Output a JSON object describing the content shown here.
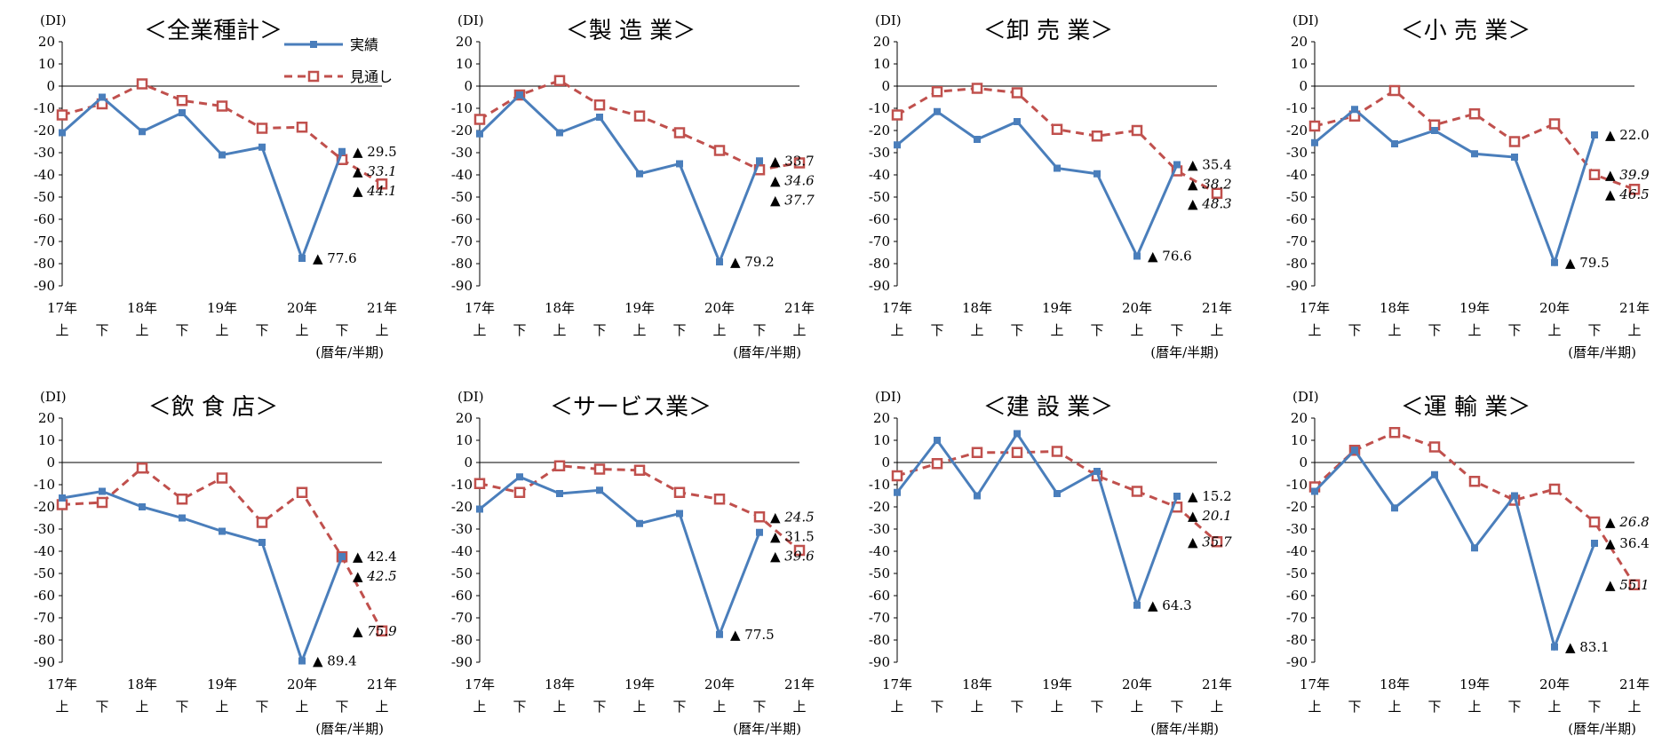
{
  "page": {
    "di_label": "(DI)",
    "period_label": "(暦年/半期)",
    "legend": {
      "actual": "実績",
      "forecast": "見通し"
    },
    "colors": {
      "actual": "#4a7ebb",
      "forecast": "#c0504d"
    }
  },
  "chart_data": [
    {
      "type": "line",
      "title": "＜全業種計＞",
      "x_year_labels": [
        "17年",
        "18年",
        "19年",
        "20年",
        "21年"
      ],
      "x_half_labels": [
        "上",
        "下",
        "上",
        "下",
        "上",
        "下",
        "上",
        "下",
        "上"
      ],
      "yticks": [
        20,
        10,
        0,
        -10,
        -20,
        -30,
        -40,
        -50,
        -60,
        -70,
        -80,
        -90
      ],
      "ylim": [
        -90,
        20
      ],
      "series": [
        {
          "name": "実績",
          "values": [
            -21,
            -5,
            -20.5,
            -12,
            -31,
            -27.5,
            -77.6,
            -29.5,
            null
          ]
        },
        {
          "name": "見通し",
          "values": [
            -13,
            -8,
            1,
            -6.5,
            -9,
            -19,
            -18.5,
            -33.1,
            -44.1
          ]
        }
      ],
      "annotations": [
        {
          "text": "▲ 29.5",
          "style": "normal",
          "value": -29.5
        },
        {
          "text": "▲ 33.1",
          "style": "italic",
          "value": -33.1
        },
        {
          "text": "▲ 44.1",
          "style": "italic",
          "value": -44.1
        },
        {
          "text": "▲ 77.6",
          "style": "normal",
          "value": -77.6
        }
      ],
      "legend": true
    },
    {
      "type": "line",
      "title": "＜製 造 業＞",
      "x_year_labels": [
        "17年",
        "18年",
        "19年",
        "20年",
        "21年"
      ],
      "x_half_labels": [
        "上",
        "下",
        "上",
        "下",
        "上",
        "下",
        "上",
        "下",
        "上"
      ],
      "yticks": [
        20,
        10,
        0,
        -10,
        -20,
        -30,
        -40,
        -50,
        -60,
        -70,
        -80,
        -90
      ],
      "ylim": [
        -90,
        20
      ],
      "series": [
        {
          "name": "実績",
          "values": [
            -21.5,
            -4,
            -21,
            -14,
            -39.5,
            -35,
            -79.2,
            -33.7,
            null
          ]
        },
        {
          "name": "見通し",
          "values": [
            -15,
            -4,
            2.5,
            -8.5,
            -13.5,
            -21,
            -29,
            -37.7,
            -34.6
          ]
        }
      ],
      "annotations": [
        {
          "text": "▲ 33.7",
          "style": "normal",
          "value": -33.7
        },
        {
          "text": "▲ 34.6",
          "style": "italic",
          "value": -34.6
        },
        {
          "text": "▲ 37.7",
          "style": "italic",
          "value": -37.7
        },
        {
          "text": "▲ 79.2",
          "style": "normal",
          "value": -79.2
        }
      ],
      "legend": false
    },
    {
      "type": "line",
      "title": "＜卸 売 業＞",
      "x_year_labels": [
        "17年",
        "18年",
        "19年",
        "20年",
        "21年"
      ],
      "x_half_labels": [
        "上",
        "下",
        "上",
        "下",
        "上",
        "下",
        "上",
        "下",
        "上"
      ],
      "yticks": [
        20,
        10,
        0,
        -10,
        -20,
        -30,
        -40,
        -50,
        -60,
        -70,
        -80,
        -90
      ],
      "ylim": [
        -90,
        20
      ],
      "series": [
        {
          "name": "実績",
          "values": [
            -26.5,
            -11.5,
            -24,
            -16,
            -37,
            -39.5,
            -76.6,
            -35.4,
            null
          ]
        },
        {
          "name": "見通し",
          "values": [
            -13,
            -2.5,
            -1,
            -3,
            -19.5,
            -22.5,
            -20,
            -38.2,
            -48.3
          ]
        }
      ],
      "annotations": [
        {
          "text": "▲ 35.4",
          "style": "normal",
          "value": -35.4
        },
        {
          "text": "▲ 38.2",
          "style": "italic",
          "value": -38.2
        },
        {
          "text": "▲ 48.3",
          "style": "italic",
          "value": -48.3
        },
        {
          "text": "▲ 76.6",
          "style": "normal",
          "value": -76.6
        }
      ],
      "legend": false
    },
    {
      "type": "line",
      "title": "＜小 売 業＞",
      "x_year_labels": [
        "17年",
        "18年",
        "19年",
        "20年",
        "21年"
      ],
      "x_half_labels": [
        "上",
        "下",
        "上",
        "下",
        "上",
        "下",
        "上",
        "下",
        "上"
      ],
      "yticks": [
        20,
        10,
        0,
        -10,
        -20,
        -30,
        -40,
        -50,
        -60,
        -70,
        -80,
        -90
      ],
      "ylim": [
        -90,
        20
      ],
      "series": [
        {
          "name": "実績",
          "values": [
            -25.5,
            -10.5,
            -26,
            -20,
            -30.5,
            -32,
            -79.5,
            -22,
            null
          ]
        },
        {
          "name": "見通し",
          "values": [
            -18,
            -13.5,
            -2,
            -17.5,
            -12.5,
            -25,
            -17,
            -39.9,
            -46.5
          ]
        }
      ],
      "annotations": [
        {
          "text": "▲ 22.0",
          "style": "normal",
          "value": -22.0
        },
        {
          "text": "▲ 39.9",
          "style": "italic",
          "value": -39.9
        },
        {
          "text": "▲ 46.5",
          "style": "italic",
          "value": -46.5
        },
        {
          "text": "▲ 79.5",
          "style": "normal",
          "value": -79.5
        }
      ],
      "legend": false
    },
    {
      "type": "line",
      "title": "＜飲 食 店＞",
      "x_year_labels": [
        "17年",
        "18年",
        "19年",
        "20年",
        "21年"
      ],
      "x_half_labels": [
        "上",
        "下",
        "上",
        "下",
        "上",
        "下",
        "上",
        "下",
        "上"
      ],
      "yticks": [
        20,
        10,
        0,
        -10,
        -20,
        -30,
        -40,
        -50,
        -60,
        -70,
        -80,
        -90
      ],
      "ylim": [
        -90,
        20
      ],
      "series": [
        {
          "name": "実績",
          "values": [
            -16,
            -13,
            -20,
            -25,
            -31,
            -36,
            -89.4,
            -42.4,
            null
          ]
        },
        {
          "name": "見通し",
          "values": [
            -19,
            -18,
            -2.5,
            -16.5,
            -7,
            -27,
            -13.5,
            -42.5,
            -75.9
          ]
        }
      ],
      "annotations": [
        {
          "text": "▲ 42.4",
          "style": "normal",
          "value": -42.4
        },
        {
          "text": "▲ 42.5",
          "style": "italic",
          "value": -42.5
        },
        {
          "text": "▲ 75.9",
          "style": "italic",
          "value": -75.9
        },
        {
          "text": "▲ 89.4",
          "style": "normal",
          "value": -89.4
        }
      ],
      "legend": false
    },
    {
      "type": "line",
      "title": "＜サービス業＞",
      "x_year_labels": [
        "17年",
        "18年",
        "19年",
        "20年",
        "21年"
      ],
      "x_half_labels": [
        "上",
        "下",
        "上",
        "下",
        "上",
        "下",
        "上",
        "下",
        "上"
      ],
      "yticks": [
        20,
        10,
        0,
        -10,
        -20,
        -30,
        -40,
        -50,
        -60,
        -70,
        -80,
        -90
      ],
      "ylim": [
        -90,
        20
      ],
      "series": [
        {
          "name": "実績",
          "values": [
            -21,
            -6.5,
            -14,
            -12.5,
            -27.5,
            -23,
            -77.5,
            -31.5,
            null
          ]
        },
        {
          "name": "見通し",
          "values": [
            -9.5,
            -13.5,
            -1.5,
            -3,
            -3.5,
            -13.5,
            -16.5,
            -24.5,
            -39.6
          ]
        }
      ],
      "annotations": [
        {
          "text": "▲ 24.5",
          "style": "italic",
          "value": -24.5
        },
        {
          "text": "▲ 31.5",
          "style": "normal",
          "value": -31.5
        },
        {
          "text": "▲ 39.6",
          "style": "italic",
          "value": -39.6
        },
        {
          "text": "▲ 77.5",
          "style": "normal",
          "value": -77.5
        }
      ],
      "legend": false
    },
    {
      "type": "line",
      "title": "＜建 設 業＞",
      "x_year_labels": [
        "17年",
        "18年",
        "19年",
        "20年",
        "21年"
      ],
      "x_half_labels": [
        "上",
        "下",
        "上",
        "下",
        "上",
        "下",
        "上",
        "下",
        "上"
      ],
      "yticks": [
        20,
        10,
        0,
        -10,
        -20,
        -30,
        -40,
        -50,
        -60,
        -70,
        -80,
        -90
      ],
      "ylim": [
        -90,
        20
      ],
      "series": [
        {
          "name": "実績",
          "values": [
            -13.5,
            10,
            -15,
            13,
            -14,
            -4,
            -64.3,
            -15.2,
            null
          ]
        },
        {
          "name": "見通し",
          "values": [
            -6,
            -0.5,
            4.5,
            4.5,
            5,
            -6,
            -13,
            -20.1,
            -35.7
          ]
        }
      ],
      "annotations": [
        {
          "text": "▲ 15.2",
          "style": "normal",
          "value": -15.2
        },
        {
          "text": "▲ 20.1",
          "style": "italic",
          "value": -20.1
        },
        {
          "text": "▲ 35.7",
          "style": "italic",
          "value": -35.7
        },
        {
          "text": "▲ 64.3",
          "style": "normal",
          "value": -64.3
        }
      ],
      "legend": false
    },
    {
      "type": "line",
      "title": "＜運 輸 業＞",
      "x_year_labels": [
        "17年",
        "18年",
        "19年",
        "20年",
        "21年"
      ],
      "x_half_labels": [
        "上",
        "下",
        "上",
        "下",
        "上",
        "下",
        "上",
        "下",
        "上"
      ],
      "yticks": [
        20,
        10,
        0,
        -10,
        -20,
        -30,
        -40,
        -50,
        -60,
        -70,
        -80,
        -90
      ],
      "ylim": [
        -90,
        20
      ],
      "series": [
        {
          "name": "実績",
          "values": [
            -13,
            5.5,
            -20.5,
            -5.5,
            -38.5,
            -15,
            -83.1,
            -36.4,
            null
          ]
        },
        {
          "name": "見通し",
          "values": [
            -11,
            5.5,
            13.5,
            7,
            -8.5,
            -17,
            -12,
            -26.8,
            -55.1
          ]
        }
      ],
      "annotations": [
        {
          "text": "▲ 26.8",
          "style": "italic",
          "value": -26.8
        },
        {
          "text": "▲ 36.4",
          "style": "normal",
          "value": -36.4
        },
        {
          "text": "▲ 55.1",
          "style": "italic",
          "value": -55.1
        },
        {
          "text": "▲ 83.1",
          "style": "normal",
          "value": -83.1
        }
      ],
      "legend": false
    }
  ]
}
